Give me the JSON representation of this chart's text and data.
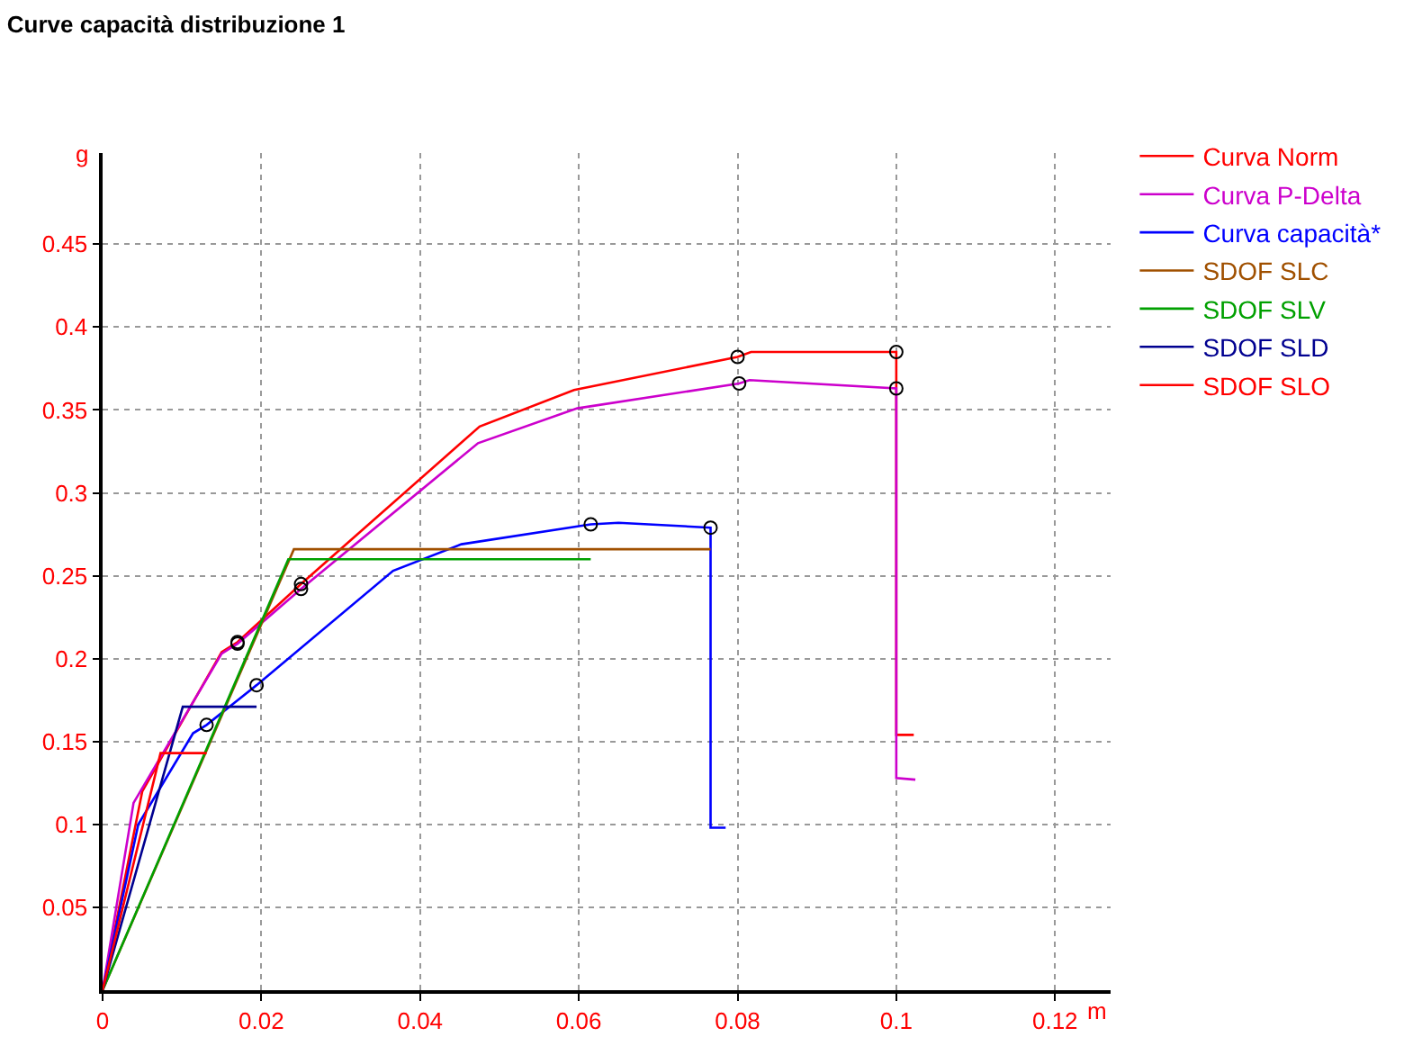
{
  "chart_data": {
    "type": "line",
    "title": "Curve capacità distribuzione 1",
    "xlabel": "m",
    "ylabel": "g",
    "xlim": [
      0,
      0.127
    ],
    "ylim": [
      0,
      0.505
    ],
    "xticks": [
      0,
      0.02,
      0.04,
      0.06,
      0.08,
      0.1,
      0.12
    ],
    "yticks": [
      0.05,
      0.1,
      0.15,
      0.2,
      0.25,
      0.3,
      0.35,
      0.4,
      0.45
    ],
    "grid": true,
    "legend": "top right",
    "line_style": "solid",
    "series": [
      {
        "name": "Curva Norm",
        "color": "#ff0000",
        "x": [
          0,
          0.005,
          0.015,
          0.017,
          0.025,
          0.0475,
          0.0594,
          0.08,
          0.0817,
          0.1,
          0.1,
          0.1022
        ],
        "values": [
          0,
          0.12,
          0.204,
          0.21,
          0.245,
          0.34,
          0.362,
          0.382,
          0.385,
          0.385,
          0.154,
          0.154
        ]
      },
      {
        "name": "Curva P-Delta",
        "color": "#cc00cc",
        "x": [
          0,
          0.0039,
          0.015,
          0.017,
          0.025,
          0.0473,
          0.0598,
          0.0802,
          0.0815,
          0.1,
          0.1,
          0.1024
        ],
        "values": [
          0,
          0.113,
          0.203,
          0.209,
          0.242,
          0.33,
          0.351,
          0.366,
          0.368,
          0.363,
          0.128,
          0.127
        ]
      },
      {
        "name": "Curva capacità*",
        "color": "#0000ff",
        "x": [
          0,
          0.0045,
          0.0114,
          0.0131,
          0.0194,
          0.0366,
          0.0452,
          0.0615,
          0.065,
          0.0766,
          0.0766,
          0.0785
        ],
        "values": [
          0,
          0.1,
          0.155,
          0.16,
          0.184,
          0.253,
          0.269,
          0.281,
          0.282,
          0.279,
          0.098,
          0.098
        ]
      },
      {
        "name": "SDOF SLC",
        "color": "#a05000",
        "x": [
          0,
          0.0241,
          0.0766
        ],
        "values": [
          0,
          0.266,
          0.266
        ]
      },
      {
        "name": "SDOF SLV",
        "color": "#00a000",
        "x": [
          0,
          0.0234,
          0.0615
        ],
        "values": [
          0,
          0.26,
          0.26
        ]
      },
      {
        "name": "SDOF SLD",
        "color": "#000090",
        "x": [
          0,
          0.0101,
          0.0194
        ],
        "values": [
          0,
          0.171,
          0.171
        ]
      },
      {
        "name": "SDOF SLO",
        "color": "#ff0000",
        "x": [
          0,
          0.0073,
          0.0131
        ],
        "values": [
          0,
          0.143,
          0.143
        ]
      },
      {
        "type": "scatter",
        "marker": "circle",
        "color": "#000000",
        "x": [
          0.017,
          0.025,
          0.08,
          0.1,
          0.017,
          0.025,
          0.0802,
          0.1,
          0.0131,
          0.0194,
          0.0615,
          0.0766
        ],
        "values": [
          0.21,
          0.245,
          0.382,
          0.385,
          0.209,
          0.242,
          0.366,
          0.363,
          0.16,
          0.184,
          0.281,
          0.279
        ]
      }
    ]
  }
}
